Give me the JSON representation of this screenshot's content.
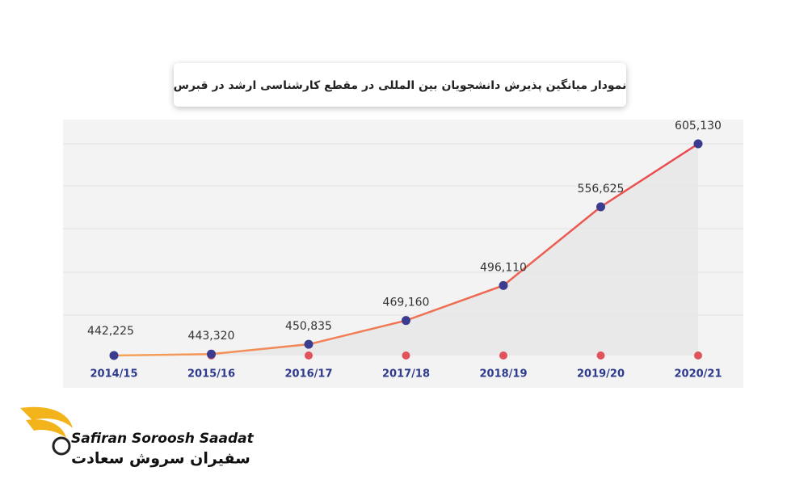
{
  "chart_data": {
    "type": "line",
    "title": "نمودار میانگین پذیرش دانشجویان بین المللی در مقطع کارشناسی ارشد در قبرس",
    "categories": [
      "2014/15",
      "2015/16",
      "2016/17",
      "2017/18",
      "2018/19",
      "2019/20",
      "2020/21"
    ],
    "values": [
      442225,
      443320,
      450835,
      469160,
      496110,
      556625,
      605130
    ],
    "value_labels": [
      "442,225",
      "443,320",
      "450,835",
      "469,160",
      "496,110",
      "556,625",
      "605,130"
    ],
    "color": "#e8474f",
    "marker_color": "#3b3b8f"
  },
  "logo": {
    "name_latin": "Safiran Soroosh Saadat",
    "name_persian": "سفیران سروش سعادت"
  }
}
